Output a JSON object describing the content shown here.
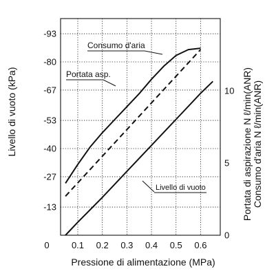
{
  "chart_data": {
    "type": "line",
    "xlabel": "Pressione di alimentazione (MPa)",
    "ylabel_left": "Livello di vuoto (kPa)",
    "ylabel_right_1": "Portata di aspirazione N ℓ/min(ANR)",
    "ylabel_right_2": "Consumo d'aria N ℓ/min(ANR)",
    "x_ticks": [
      "0.1",
      "0.2",
      "0.3",
      "0.4",
      "0.5",
      "0.6"
    ],
    "x_origin_label": "0",
    "y_left_ticks": [
      "-93",
      "-80",
      "-67",
      "-53",
      "-40",
      "-27",
      "-13"
    ],
    "y_left_origin_label": "0",
    "y_right_ticks": [
      "10",
      "5",
      "0"
    ],
    "xlim": [
      0.03,
      0.68
    ],
    "ylim_left": [
      0,
      -100
    ],
    "ylim_right": [
      0,
      15
    ],
    "grid": true,
    "series": [
      {
        "name": "Portata asp.",
        "axis": "right",
        "style": "solid",
        "x": [
          0.05,
          0.1,
          0.15,
          0.2,
          0.25,
          0.3,
          0.35,
          0.4,
          0.45,
          0.5,
          0.55,
          0.6
        ],
        "values": [
          3.6,
          4.9,
          6.1,
          7.1,
          8.0,
          8.9,
          9.8,
          10.8,
          11.7,
          12.45,
          12.85,
          12.95
        ]
      },
      {
        "name": "Consumo d'aria",
        "axis": "right",
        "style": "dashed",
        "x": [
          0.05,
          0.6
        ],
        "values": [
          2.7,
          12.85
        ]
      },
      {
        "name": "Livello di vuoto",
        "axis": "left",
        "style": "solid",
        "x": [
          0.05,
          0.1,
          0.2,
          0.3,
          0.4,
          0.5,
          0.6,
          0.65
        ],
        "values": [
          0,
          -6,
          -17.5,
          -29.5,
          -41.5,
          -53.5,
          -65.5,
          -71
        ]
      }
    ],
    "annotations": [
      {
        "text": "Consumo d'aria"
      },
      {
        "text": "Portata asp."
      },
      {
        "text": "Livello di vuoto"
      }
    ]
  }
}
